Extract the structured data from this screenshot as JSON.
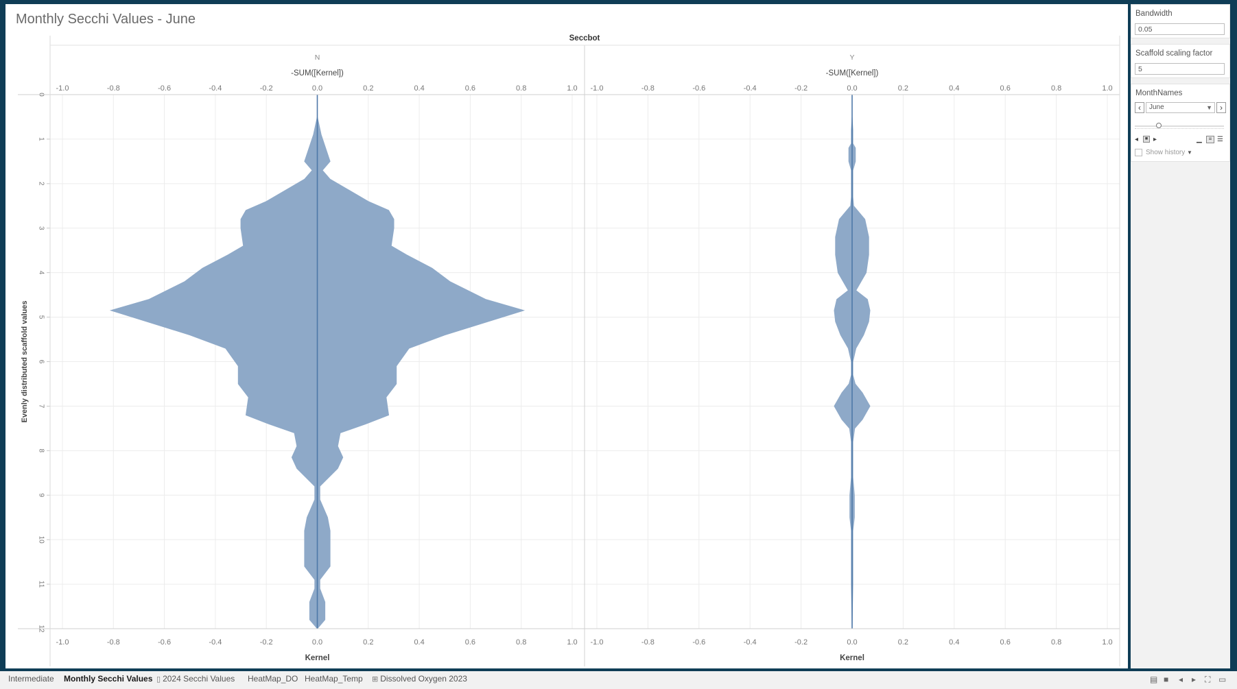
{
  "title": "Monthly Secchi Values - June",
  "sheet_tabs": [
    {
      "label": "Intermediate",
      "icon": "",
      "active": false
    },
    {
      "label": "Monthly Secchi Values",
      "icon": "",
      "active": true
    },
    {
      "label": "2024 Secchi Values",
      "icon": "book-icon",
      "active": false
    },
    {
      "label": "HeatMap_DO",
      "icon": "",
      "active": false
    },
    {
      "label": "HeatMap_Temp",
      "icon": "",
      "active": false
    },
    {
      "label": "Dissolved Oxygen 2023",
      "icon": "grid-icon",
      "active": false
    }
  ],
  "parameters": {
    "bandwidth": {
      "label": "Bandwidth",
      "value": "0.05"
    },
    "scaffold": {
      "label": "Scaffold scaling factor",
      "value": "5"
    },
    "month": {
      "label": "MonthNames",
      "value": "June",
      "show_history": "Show history"
    }
  },
  "colors": {
    "fill": "#8ea9c8",
    "line": "#4e78a8"
  },
  "chart_data": {
    "type": "area",
    "subtype": "violin",
    "column_header": "Seccbot",
    "top_axis_title": "-SUM([Kernel])",
    "bottom_axis_title": "Kernel",
    "y_axis_title": "Evenly distributed scaffold values",
    "x_range": [
      -1.0,
      1.0
    ],
    "x_ticks": [
      "-1.0",
      "-0.8",
      "-0.6",
      "-0.4",
      "-0.2",
      "0.0",
      "0.2",
      "0.4",
      "0.6",
      "0.8",
      "1.0"
    ],
    "y_range": [
      0,
      12
    ],
    "y_ticks": [
      "0",
      "1",
      "2",
      "3",
      "4",
      "5",
      "6",
      "7",
      "8",
      "9",
      "10",
      "11",
      "12"
    ],
    "grid": true,
    "panels": [
      {
        "name": "N",
        "y": [
          0,
          0.5,
          0.9,
          1.5,
          1.7,
          1.9,
          2.4,
          2.6,
          2.8,
          3.0,
          3.4,
          3.6,
          3.9,
          4.2,
          4.6,
          4.85,
          5.4,
          5.7,
          6.1,
          6.5,
          6.8,
          7.2,
          7.4,
          7.6,
          7.9,
          8.15,
          8.4,
          8.8,
          9.1,
          9.5,
          9.8,
          10.2,
          10.6,
          10.9,
          11.1,
          11.4,
          11.8,
          12.0
        ],
        "kernel": [
          0.0,
          0.0,
          0.015,
          0.05,
          0.02,
          0.05,
          0.2,
          0.28,
          0.3,
          0.3,
          0.29,
          0.35,
          0.45,
          0.52,
          0.66,
          0.81,
          0.5,
          0.36,
          0.31,
          0.31,
          0.27,
          0.28,
          0.19,
          0.09,
          0.08,
          0.1,
          0.08,
          0.01,
          0.01,
          0.04,
          0.05,
          0.05,
          0.05,
          0.01,
          0.01,
          0.03,
          0.03,
          0.0
        ]
      },
      {
        "name": "Y",
        "y": [
          0,
          0.5,
          0.8,
          1.1,
          1.2,
          1.5,
          1.7,
          2.0,
          2.3,
          2.5,
          2.8,
          3.2,
          3.6,
          4.0,
          4.2,
          4.4,
          4.6,
          4.85,
          5.1,
          5.4,
          5.7,
          6.0,
          6.3,
          6.5,
          6.7,
          7.0,
          7.3,
          7.5,
          7.8,
          8.2,
          8.6,
          9.0,
          9.2,
          9.5,
          9.8,
          10.2,
          11.0,
          12.0
        ],
        "kernel": [
          0.0,
          0.0,
          0.003,
          0.003,
          0.013,
          0.013,
          0.003,
          0.003,
          0.003,
          0.006,
          0.05,
          0.065,
          0.065,
          0.055,
          0.035,
          0.015,
          0.06,
          0.07,
          0.065,
          0.045,
          0.015,
          0.003,
          0.003,
          0.012,
          0.04,
          0.07,
          0.04,
          0.01,
          0.003,
          0.003,
          0.003,
          0.009,
          0.009,
          0.009,
          0.003,
          0.003,
          0.003,
          0.0
        ]
      }
    ]
  }
}
